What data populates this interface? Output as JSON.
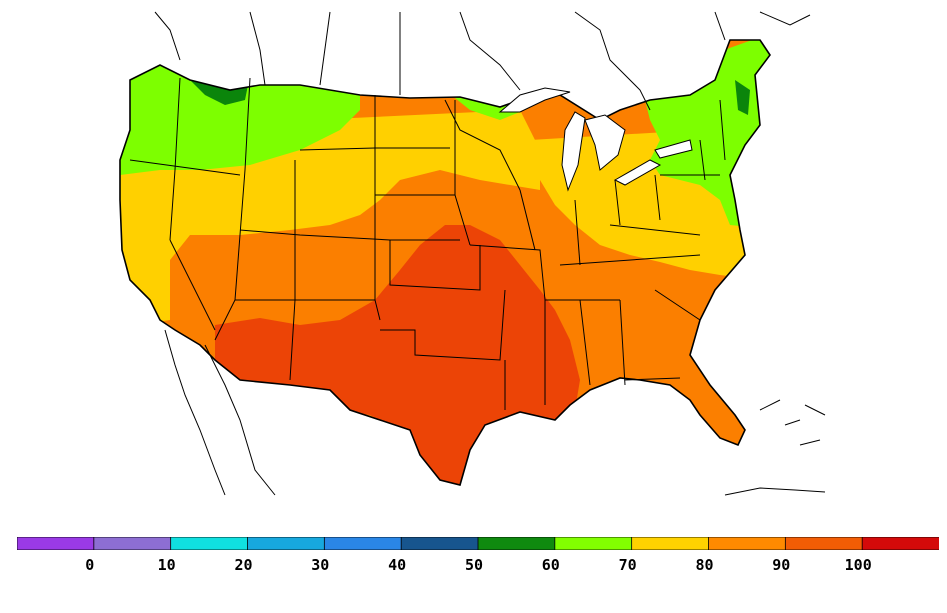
{
  "legend": {
    "colors": [
      "#9a3ae6",
      "#8d6ed3",
      "#10e0e0",
      "#17a8de",
      "#2a86e6",
      "#17558e",
      "#0f8a0f",
      "#82ff00",
      "#ffd200",
      "#ff8a00",
      "#f25d05",
      "#d40a0a"
    ],
    "ticks": [
      "0",
      "10",
      "20",
      "30",
      "40",
      "50",
      "60",
      "70",
      "80",
      "90",
      "100"
    ]
  },
  "palette": {
    "band_90_100": "#ec4406",
    "band_80_90": "#fb7f00",
    "band_70_80": "#ffd000",
    "band_60_70": "#7dff00",
    "band_50_60": "#0b850b",
    "borders": "#000000",
    "background": "#ffffff"
  }
}
